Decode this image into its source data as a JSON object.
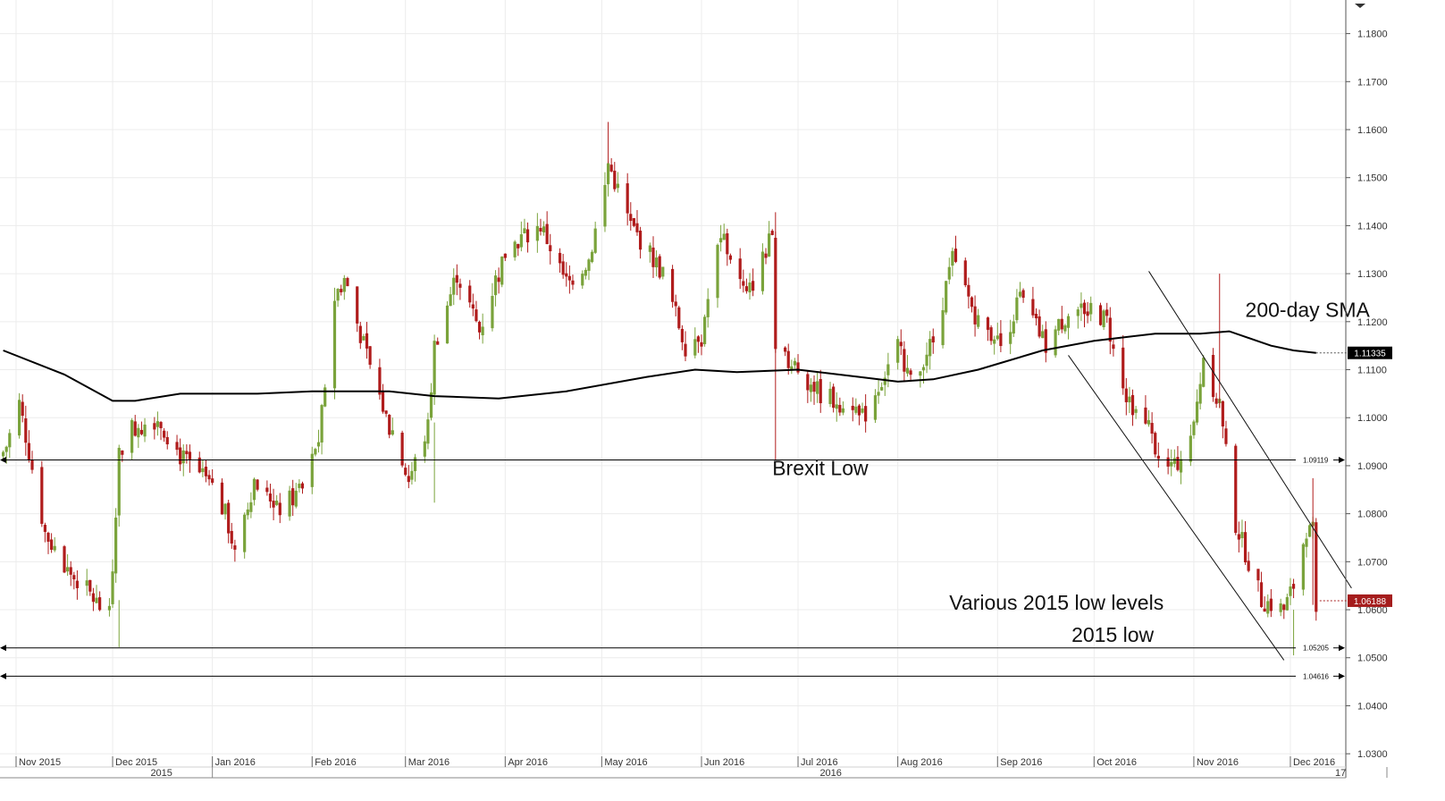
{
  "chart_data": {
    "type": "candlestick",
    "title": "",
    "xlabel": "",
    "ylabel": "",
    "ylim": [
      1.025,
      1.187
    ],
    "y_ticks": [
      "1.0300",
      "1.0400",
      "1.0500",
      "1.0600",
      "1.0700",
      "1.0800",
      "1.0900",
      "1.1000",
      "1.1100",
      "1.1200",
      "1.1300",
      "1.1400",
      "1.1500",
      "1.1600",
      "1.1700",
      "1.1800"
    ],
    "x_ticks": [
      "Nov 2015",
      "Dec 2015",
      "Jan 2016",
      "Feb 2016",
      "Mar 2016",
      "Apr 2016",
      "May 2016",
      "Jun 2016",
      "Jul 2016",
      "Aug 2016",
      "Sep 2016",
      "Oct 2016",
      "Nov 2016",
      "Dec 2016"
    ],
    "year_labels": [
      "2015",
      "2016",
      "17"
    ],
    "grid": true,
    "colors": {
      "up": "#7aa33b",
      "down": "#b01c1c",
      "sma": "#000000",
      "last_tag": "#a51d1d",
      "sma_tag": "#000000"
    },
    "series": [
      {
        "kind": "ohlc_keypoints",
        "close_path": [
          [
            "Oct 28 2015",
            1.092
          ],
          [
            "Nov 2 2015",
            1.103
          ],
          [
            "Nov 10 2015",
            1.076
          ],
          [
            "Nov 16 2015",
            1.069
          ],
          [
            "Nov 23 2015",
            1.064
          ],
          [
            "Nov 30 2015",
            1.058
          ],
          [
            "Dec 3 2015",
            1.093
          ],
          [
            "Dec 7 2015",
            1.098
          ],
          [
            "Dec 15 2015",
            1.1
          ],
          [
            "Dec 22 2015",
            1.092
          ],
          [
            "Dec 31 2015",
            1.086
          ],
          [
            "Jan 5 2016",
            1.08
          ],
          [
            "Jan 8 2016",
            1.072
          ],
          [
            "Jan 14 2016",
            1.087
          ],
          [
            "Jan 22 2016",
            1.081
          ],
          [
            "Jan 29 2016",
            1.085
          ],
          [
            "Feb 3 2016",
            1.095
          ],
          [
            "Feb 8 2016",
            1.125
          ],
          [
            "Feb 11 2016",
            1.129
          ],
          [
            "Feb 17 2016",
            1.115
          ],
          [
            "Feb 24 2016",
            1.1
          ],
          [
            "Mar 2 2016",
            1.087
          ],
          [
            "Mar 8 2016",
            1.098
          ],
          [
            "Mar 10 2016",
            1.115
          ],
          [
            "Mar 17 2016",
            1.13
          ],
          [
            "Mar 24 2016",
            1.118
          ],
          [
            "Apr 1 2016",
            1.135
          ],
          [
            "Apr 12 2016",
            1.14
          ],
          [
            "Apr 20 2016",
            1.128
          ],
          [
            "Apr 27 2016",
            1.133
          ],
          [
            "May 2 2016",
            1.148
          ],
          [
            "May 3 2016",
            1.153
          ],
          [
            "May 10 2016",
            1.14
          ],
          [
            "May 20 2016",
            1.13
          ],
          [
            "May 27 2016",
            1.115
          ],
          [
            "Jun 1 2016",
            1.118
          ],
          [
            "Jun 7 2016",
            1.138
          ],
          [
            "Jun 15 2016",
            1.125
          ],
          [
            "Jun 23 2016",
            1.138
          ],
          [
            "Jun 24 2016",
            1.113
          ],
          [
            "Jul 1 2016",
            1.11
          ],
          [
            "Jul 8 2016",
            1.105
          ],
          [
            "Jul 22 2016",
            1.101
          ],
          [
            "Aug 1 2016",
            1.115
          ],
          [
            "Aug 5 2016",
            1.108
          ],
          [
            "Aug 12 2016",
            1.116
          ],
          [
            "Aug 18 2016",
            1.133
          ],
          [
            "Aug 26 2016",
            1.12
          ],
          [
            "Sep 2 2016",
            1.115
          ],
          [
            "Sep 8 2016",
            1.125
          ],
          [
            "Sep 16 2016",
            1.115
          ],
          [
            "Sep 23 2016",
            1.122
          ],
          [
            "Sep 30 2016",
            1.123
          ],
          [
            "Oct 5 2016",
            1.12
          ],
          [
            "Oct 11 2016",
            1.105
          ],
          [
            "Oct 18 2016",
            1.097
          ],
          [
            "Oct 25 2016",
            1.088
          ],
          [
            "Nov 1 2016",
            1.098
          ],
          [
            "Nov 4 2016",
            1.113
          ],
          [
            "Nov 9 2016",
            1.102
          ],
          [
            "Nov 14 2016",
            1.078
          ],
          [
            "Nov 22 2016",
            1.062
          ],
          [
            "Nov 29 2016",
            1.06
          ],
          [
            "Dec 2 2016",
            1.065
          ],
          [
            "Dec 6 2016",
            1.077
          ],
          [
            "Dec 8 2016",
            1.075
          ],
          [
            "Dec 9 2016",
            1.0618
          ]
        ]
      },
      {
        "name": "200-day SMA",
        "kind": "line",
        "points": [
          [
            "Oct 28 2015",
            1.114
          ],
          [
            "Nov 16 2015",
            1.109
          ],
          [
            "Dec 1 2015",
            1.1035
          ],
          [
            "Dec 8 2015",
            1.1035
          ],
          [
            "Dec 22 2015",
            1.105
          ],
          [
            "Jan 15 2016",
            1.105
          ],
          [
            "Feb 1 2016",
            1.1055
          ],
          [
            "Feb 25 2016",
            1.1055
          ],
          [
            "Mar 10 2016",
            1.1045
          ],
          [
            "Mar 30 2016",
            1.104
          ],
          [
            "Apr 20 2016",
            1.1055
          ],
          [
            "May 15 2016",
            1.1085
          ],
          [
            "May 30 2016",
            1.11
          ],
          [
            "Jun 12 2016",
            1.1095
          ],
          [
            "Jul 1 2016",
            1.11
          ],
          [
            "Jul 20 2016",
            1.1085
          ],
          [
            "Aug 1 2016",
            1.1075
          ],
          [
            "Aug 12 2016",
            1.108
          ],
          [
            "Aug 26 2016",
            1.11
          ],
          [
            "Sep 15 2016",
            1.114
          ],
          [
            "Oct 1 2016",
            1.116
          ],
          [
            "Oct 20 2016",
            1.1175
          ],
          [
            "Nov 3 2016",
            1.1175
          ],
          [
            "Nov 12 2016",
            1.118
          ],
          [
            "Nov 25 2016",
            1.115
          ],
          [
            "Dec 2 2016",
            1.114
          ],
          [
            "Dec 9 2016",
            1.1135
          ]
        ]
      }
    ],
    "horizontal_levels": [
      {
        "value": 1.09119,
        "label": "1.09119",
        "annotation": "Brexit Low"
      },
      {
        "value": 1.05205,
        "label": "1.05205",
        "annotation": "Various 2015 low levels"
      },
      {
        "value": 1.04616,
        "label": "1.04616",
        "annotation": "2015 low"
      }
    ],
    "trend_lines": [
      {
        "from": [
          "Sep 23 2016",
          1.113
        ],
        "to": [
          "Nov 29 2016",
          1.0495
        ]
      },
      {
        "from": [
          "Oct 18 2016",
          1.1305
        ],
        "to": [
          "Dec 20 2016",
          1.0645
        ]
      }
    ],
    "annotations": [
      {
        "text": "200-day SMA",
        "at": [
          "Nov 17 2016",
          1.121
        ]
      },
      {
        "text": "Brexit Low",
        "at": [
          "Jun 23 2016",
          1.088
        ]
      },
      {
        "text": "Various 2015 low levels",
        "at": [
          "Aug 17 2016",
          1.06
        ]
      },
      {
        "text": "2015 low",
        "at": [
          "Sep 24 2016",
          1.0533
        ]
      }
    ],
    "last_price_tag": "1.06188",
    "sma_tag": "1.11335"
  }
}
